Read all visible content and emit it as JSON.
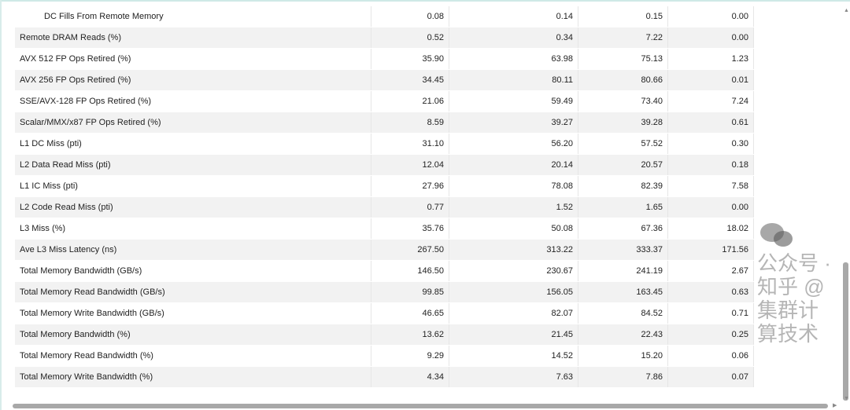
{
  "table": {
    "rows": [
      {
        "label": "DC Fills From Remote Memory",
        "indent": true,
        "values": [
          "0.08",
          "0.14",
          "0.15",
          "0.00"
        ]
      },
      {
        "label": "Remote DRAM Reads (%)",
        "values": [
          "0.52",
          "0.34",
          "7.22",
          "0.00"
        ]
      },
      {
        "label": "AVX 512 FP Ops Retired (%)",
        "values": [
          "35.90",
          "63.98",
          "75.13",
          "1.23"
        ]
      },
      {
        "label": "AVX 256 FP Ops Retired (%)",
        "values": [
          "34.45",
          "80.11",
          "80.66",
          "0.01"
        ]
      },
      {
        "label": "SSE/AVX-128 FP Ops Retired (%)",
        "values": [
          "21.06",
          "59.49",
          "73.40",
          "7.24"
        ]
      },
      {
        "label": "Scalar/MMX/x87 FP Ops Retired (%)",
        "values": [
          "8.59",
          "39.27",
          "39.28",
          "0.61"
        ]
      },
      {
        "label": "L1 DC Miss (pti)",
        "values": [
          "31.10",
          "56.20",
          "57.52",
          "0.30"
        ]
      },
      {
        "label": "L2 Data Read Miss (pti)",
        "values": [
          "12.04",
          "20.14",
          "20.57",
          "0.18"
        ]
      },
      {
        "label": "L1 IC Miss (pti)",
        "values": [
          "27.96",
          "78.08",
          "82.39",
          "7.58"
        ]
      },
      {
        "label": "L2 Code Read Miss (pti)",
        "values": [
          "0.77",
          "1.52",
          "1.65",
          "0.00"
        ]
      },
      {
        "label": "L3 Miss (%)",
        "values": [
          "35.76",
          "50.08",
          "67.36",
          "18.02"
        ]
      },
      {
        "label": "Ave L3 Miss Latency (ns)",
        "values": [
          "267.50",
          "313.22",
          "333.37",
          "171.56"
        ]
      },
      {
        "label": "Total Memory Bandwidth (GB/s)",
        "values": [
          "146.50",
          "230.67",
          "241.19",
          "2.67"
        ]
      },
      {
        "label": "Total Memory Read Bandwidth (GB/s)",
        "values": [
          "99.85",
          "156.05",
          "163.45",
          "0.63"
        ]
      },
      {
        "label": "Total Memory Write Bandwidth (GB/s)",
        "values": [
          "46.65",
          "82.07",
          "84.52",
          "0.71"
        ]
      },
      {
        "label": "Total Memory Bandwidth (%)",
        "values": [
          "13.62",
          "21.45",
          "22.43",
          "0.25"
        ]
      },
      {
        "label": "Total Memory Read Bandwidth (%)",
        "values": [
          "9.29",
          "14.52",
          "15.20",
          "0.06"
        ]
      },
      {
        "label": "Total Memory Write Bandwidth (%)",
        "values": [
          "4.34",
          "7.63",
          "7.86",
          "0.07"
        ]
      }
    ]
  },
  "watermark": "公众号 · 知乎 @集群计算技术",
  "icons": {
    "watermark_logo": "wechat-icon",
    "scroll_up": "arrow-up-icon",
    "scroll_down": "arrow-down-icon",
    "scroll_right": "arrow-right-icon"
  }
}
